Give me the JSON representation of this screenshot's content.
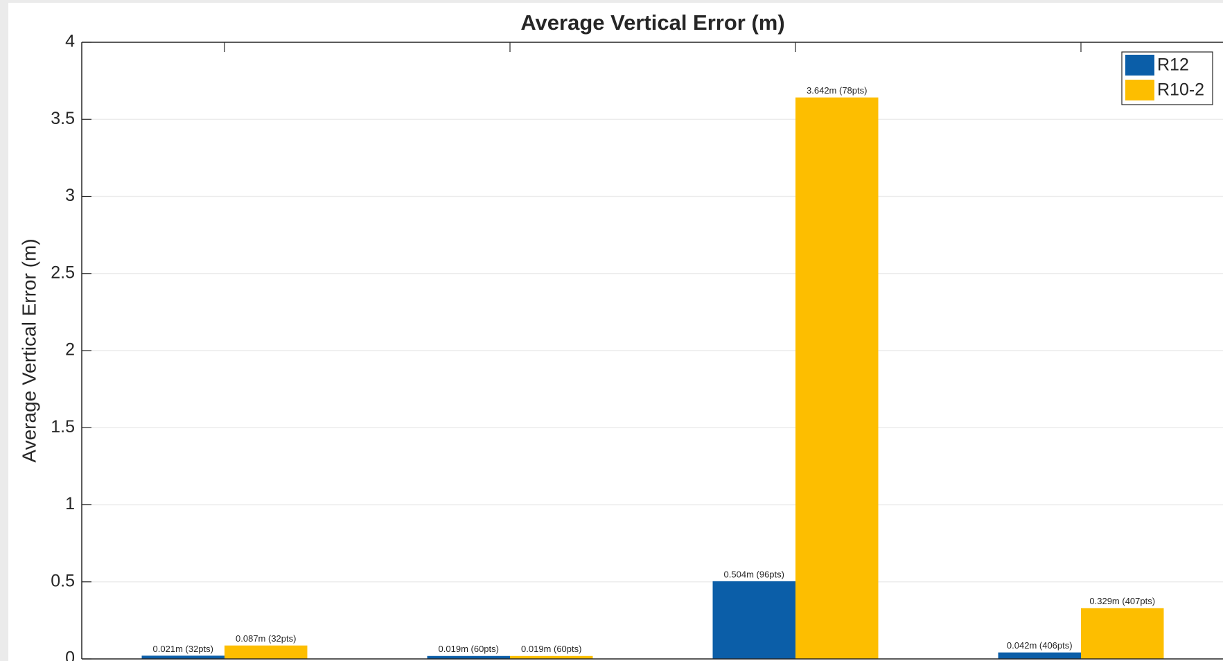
{
  "chart_data": {
    "type": "bar",
    "title": "Average Vertical Error (m)",
    "ylabel": "Average Vertical Error (m)",
    "categories": [
      null,
      null,
      null,
      null
    ],
    "series": [
      {
        "name": "R12",
        "color": "#0b5ea8",
        "values": [
          0.021,
          0.019,
          0.504,
          0.042
        ],
        "value_labels": [
          "0.021m (32pts)",
          "0.019m (60pts)",
          "0.504m (96pts)",
          "0.042m (406pts)"
        ]
      },
      {
        "name": "R10-2",
        "color": "#fdbe00",
        "values": [
          0.087,
          0.019,
          3.642,
          0.329
        ],
        "value_labels": [
          "0.087m (32pts)",
          "0.019m (60pts)",
          "3.642m (78pts)",
          "0.329m (407pts)"
        ]
      }
    ],
    "ylim": [
      0,
      4
    ],
    "yticks": [
      0,
      0.5,
      1,
      1.5,
      2,
      2.5,
      3,
      3.5,
      4
    ],
    "grid": true,
    "legend": "top-right"
  }
}
